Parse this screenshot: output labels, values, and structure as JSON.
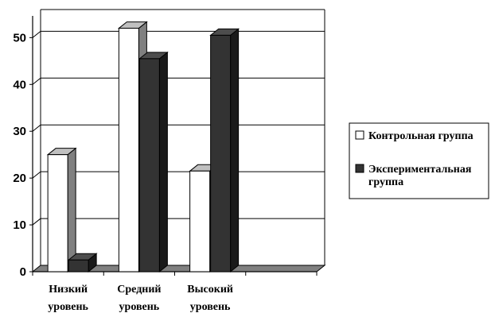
{
  "chart_data": {
    "type": "bar",
    "title": "",
    "xlabel": "",
    "ylabel": "",
    "categories": [
      [
        "Низкий",
        "уровень"
      ],
      [
        "Средний",
        "уровень"
      ],
      [
        "Высокий",
        "уровень"
      ]
    ],
    "series": [
      {
        "name": "Контрольная группа",
        "values": [
          25,
          52,
          21.5
        ],
        "color": "#ffffff"
      },
      {
        "name": "Экспериментальная группа",
        "values": [
          2.5,
          45.5,
          50.5
        ],
        "color": "#333333"
      }
    ],
    "ylim": [
      0,
      56
    ],
    "yticks": [
      0,
      10,
      20,
      30,
      40,
      50
    ],
    "grid": true,
    "style": "3d",
    "legend_position": "right"
  },
  "legend": {
    "items": [
      {
        "lines": [
          "Контрольная группа"
        ]
      },
      {
        "lines": [
          "Экспериментальная",
          "группа"
        ]
      }
    ]
  }
}
